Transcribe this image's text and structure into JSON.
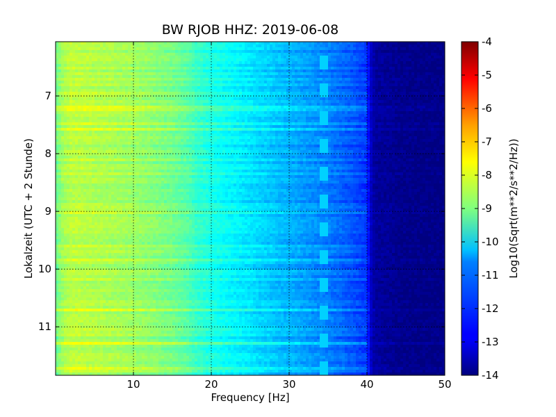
{
  "chart_data": {
    "type": "heatmap",
    "title": "BW RJOB HHZ: 2019-06-08",
    "xlabel": "Frequency [Hz]",
    "ylabel": "Lokalzeit (UTC + 2 Stunde)",
    "xlim": [
      0,
      50
    ],
    "ylim": [
      6.06,
      11.84
    ],
    "y_inverted": true,
    "grid": true,
    "x_ticks": [
      "10",
      "20",
      "30",
      "40",
      "50"
    ],
    "x_tick_values": [
      10,
      20,
      30,
      40,
      50
    ],
    "y_ticks": [
      "7",
      "8",
      "9",
      "10",
      "11"
    ],
    "y_tick_values": [
      7,
      8,
      9,
      10,
      11
    ],
    "colorbar": {
      "label": "Log10(Sqrt(m**2/s**2/Hz))",
      "range": [
        -14,
        -4
      ],
      "ticks": [
        "-4",
        "-5",
        "-6",
        "-7",
        "-8",
        "-9",
        "-10",
        "-11",
        "-12",
        "-13",
        "-14"
      ],
      "tick_values": [
        -4,
        -5,
        -6,
        -7,
        -8,
        -9,
        -10,
        -11,
        -12,
        -13,
        -14
      ],
      "colormap": "jet"
    },
    "spectrum_profile": {
      "frequency_hz": [
        0,
        1,
        2,
        3,
        5,
        8,
        10,
        12,
        15,
        17,
        18,
        20,
        22,
        25,
        28,
        30,
        33,
        35,
        38,
        40,
        40.5,
        41,
        45,
        50
      ],
      "power": [
        -9.2,
        -8.6,
        -8.4,
        -8.4,
        -8.5,
        -8.6,
        -8.7,
        -8.85,
        -9.1,
        -9.4,
        -9.7,
        -10.0,
        -10.2,
        -10.5,
        -10.8,
        -11.0,
        -11.3,
        -11.5,
        -11.9,
        -12.2,
        -13.3,
        -13.7,
        -13.9,
        -13.95
      ]
    },
    "tonal_line": {
      "description": "narrow spectral line near 34-35 Hz",
      "frequency_hz": 34.5,
      "power": -11.0
    }
  }
}
